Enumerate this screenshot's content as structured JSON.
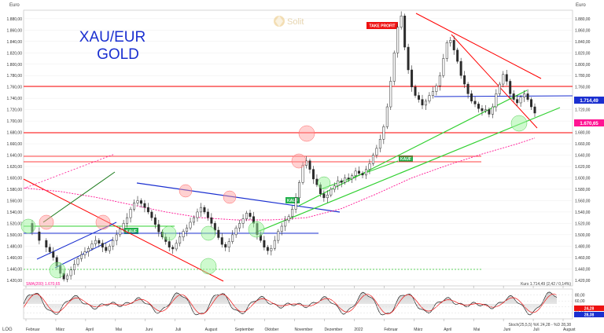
{
  "header": {
    "currency_left": "Euro",
    "currency_right": "Euro"
  },
  "brand": {
    "name": "Solit"
  },
  "chart_title": {
    "line1": "XAU/EUR",
    "line2": "GOLD"
  },
  "annotations": {
    "take_profit": "TAKE PROFIT",
    "kauf": "KAUF",
    "sma_label": "SMA(200) 1.670,65",
    "kurs_label": "Kurs 1.714,49 (2,42 / 0,14%)",
    "stoch_label": "Stoch(25,5,5) %K 24,28 - %D 28,38"
  },
  "badges": {
    "last_price": "1.714,49",
    "sma_value": "1.670,65",
    "stoch_k": "24,28",
    "stoch_d": "28,38"
  },
  "footer": {
    "log": "LOG"
  },
  "colors": {
    "price": "#2a2a2a",
    "resistance": "#ff0000",
    "support": "#30d030",
    "channel": "#1a2fd0",
    "sma": "#ff1493",
    "title": "#1a2fd0"
  },
  "chart_data": {
    "type": "candlestick",
    "title": "XAU/EUR GOLD",
    "ylabel": "Euro",
    "ylim": [
      1410,
      1895
    ],
    "y_ticks": [
      "1.420,00",
      "1.440,00",
      "1.460,00",
      "1.480,00",
      "1.500,00",
      "1.520,00",
      "1.540,00",
      "1.560,00",
      "1.580,00",
      "1.600,00",
      "1.620,00",
      "1.640,00",
      "1.660,00",
      "1.680,00",
      "1.700,00",
      "1.720,00",
      "1.740,00",
      "1.760,00",
      "1.780,00",
      "1.800,00",
      "1.820,00",
      "1.840,00",
      "1.860,00",
      "1.880,00"
    ],
    "x_labels": [
      "Februar",
      "März",
      "April",
      "Mai",
      "Juni",
      "Juli",
      "August",
      "September",
      "Oktober",
      "November",
      "Dezember",
      "2022",
      "Februar",
      "März",
      "April",
      "Mai",
      "Juni",
      "Juli",
      "August"
    ],
    "price_path": [
      [
        0,
        1520
      ],
      [
        2,
        1505
      ],
      [
        4,
        1490
      ],
      [
        6,
        1478
      ],
      [
        7,
        1470
      ],
      [
        8,
        1460
      ],
      [
        9,
        1445
      ],
      [
        10,
        1432
      ],
      [
        11,
        1422
      ],
      [
        12,
        1428
      ],
      [
        13,
        1438
      ],
      [
        14,
        1448
      ],
      [
        15,
        1458
      ],
      [
        16,
        1465
      ],
      [
        17,
        1470
      ],
      [
        18,
        1476
      ],
      [
        19,
        1484
      ],
      [
        20,
        1490
      ],
      [
        21,
        1485
      ],
      [
        22,
        1478
      ],
      [
        23,
        1472
      ],
      [
        24,
        1480
      ],
      [
        25,
        1490
      ],
      [
        26,
        1500
      ],
      [
        27,
        1510
      ],
      [
        28,
        1520
      ],
      [
        29,
        1530
      ],
      [
        30,
        1545
      ],
      [
        31,
        1556
      ],
      [
        32,
        1560
      ],
      [
        33,
        1555
      ],
      [
        34,
        1548
      ],
      [
        35,
        1540
      ],
      [
        36,
        1530
      ],
      [
        37,
        1518
      ],
      [
        38,
        1505
      ],
      [
        39,
        1496
      ],
      [
        40,
        1488
      ],
      [
        41,
        1478
      ],
      [
        42,
        1475
      ],
      [
        43,
        1485
      ],
      [
        44,
        1496
      ],
      [
        45,
        1506
      ],
      [
        46,
        1512
      ],
      [
        47,
        1522
      ],
      [
        48,
        1530
      ],
      [
        49,
        1540
      ],
      [
        50,
        1548
      ],
      [
        51,
        1540
      ],
      [
        52,
        1530
      ],
      [
        53,
        1520
      ],
      [
        54,
        1508
      ],
      [
        55,
        1495
      ],
      [
        56,
        1483
      ],
      [
        57,
        1478
      ],
      [
        58,
        1488
      ],
      [
        59,
        1500
      ],
      [
        60,
        1512
      ],
      [
        61,
        1520
      ],
      [
        62,
        1528
      ],
      [
        63,
        1538
      ],
      [
        64,
        1532
      ],
      [
        65,
        1520
      ],
      [
        66,
        1500
      ],
      [
        67,
        1490
      ],
      [
        68,
        1478
      ],
      [
        69,
        1472
      ],
      [
        70,
        1476
      ],
      [
        71,
        1490
      ],
      [
        72,
        1506
      ],
      [
        73,
        1515
      ],
      [
        74,
        1525
      ],
      [
        75,
        1532
      ],
      [
        76,
        1545
      ],
      [
        77,
        1565
      ],
      [
        78,
        1592
      ],
      [
        79,
        1622
      ],
      [
        80,
        1630
      ],
      [
        81,
        1615
      ],
      [
        82,
        1598
      ],
      [
        83,
        1588
      ],
      [
        84,
        1572
      ],
      [
        85,
        1565
      ],
      [
        86,
        1570
      ],
      [
        87,
        1580
      ],
      [
        88,
        1586
      ],
      [
        89,
        1595
      ],
      [
        90,
        1592
      ],
      [
        91,
        1600
      ],
      [
        92,
        1598
      ],
      [
        93,
        1604
      ],
      [
        94,
        1612
      ],
      [
        95,
        1608
      ],
      [
        96,
        1605
      ],
      [
        97,
        1615
      ],
      [
        98,
        1625
      ],
      [
        99,
        1640
      ],
      [
        100,
        1652
      ],
      [
        101,
        1668
      ],
      [
        102,
        1690
      ],
      [
        103,
        1725
      ],
      [
        104,
        1770
      ],
      [
        105,
        1820
      ],
      [
        106,
        1865
      ],
      [
        107,
        1885
      ],
      [
        108,
        1830
      ],
      [
        109,
        1790
      ],
      [
        110,
        1760
      ],
      [
        111,
        1745
      ],
      [
        112,
        1738
      ],
      [
        113,
        1728
      ],
      [
        114,
        1735
      ],
      [
        115,
        1745
      ],
      [
        116,
        1752
      ],
      [
        117,
        1762
      ],
      [
        118,
        1780
      ],
      [
        119,
        1810
      ],
      [
        120,
        1838
      ],
      [
        121,
        1842
      ],
      [
        122,
        1825
      ],
      [
        123,
        1805
      ],
      [
        124,
        1780
      ],
      [
        125,
        1765
      ],
      [
        126,
        1748
      ],
      [
        127,
        1735
      ],
      [
        128,
        1730
      ],
      [
        129,
        1722
      ],
      [
        130,
        1718
      ],
      [
        131,
        1720
      ],
      [
        132,
        1712
      ],
      [
        133,
        1725
      ],
      [
        134,
        1748
      ],
      [
        135,
        1765
      ],
      [
        136,
        1782
      ],
      [
        137,
        1770
      ],
      [
        138,
        1748
      ],
      [
        139,
        1738
      ],
      [
        140,
        1732
      ],
      [
        141,
        1742
      ],
      [
        142,
        1748
      ],
      [
        143,
        1738
      ],
      [
        144,
        1725
      ],
      [
        145,
        1714
      ]
    ],
    "sma200_path": [
      [
        0,
        1582
      ],
      [
        10,
        1576
      ],
      [
        20,
        1566
      ],
      [
        30,
        1553
      ],
      [
        40,
        1540
      ],
      [
        50,
        1530
      ],
      [
        60,
        1526
      ],
      [
        70,
        1526
      ],
      [
        80,
        1530
      ],
      [
        90,
        1546
      ],
      [
        100,
        1572
      ],
      [
        110,
        1600
      ],
      [
        120,
        1622
      ],
      [
        130,
        1642
      ],
      [
        140,
        1660
      ],
      [
        145,
        1670
      ]
    ],
    "stochastic": {
      "k": 24.28,
      "d": 28.38,
      "ticks": [
        "80,00",
        "60,00",
        "40,00",
        "20,00"
      ],
      "ylim": [
        0,
        100
      ]
    },
    "horizontal_levels": [
      {
        "name": "red-resistance",
        "value": 1741
      },
      {
        "name": "red-level",
        "value": 1658
      },
      {
        "name": "red-band-top",
        "value": 1612
      },
      {
        "name": "red-band-bottom",
        "value": 1603
      },
      {
        "name": "blue-level",
        "value": 1477
      },
      {
        "name": "green-level",
        "value": 1489
      },
      {
        "name": "green-dotted-level",
        "value": 1420
      },
      {
        "name": "blue-short-level",
        "value": 1722
      }
    ],
    "last_price": 1714.49,
    "sma200_value": 1670.65
  }
}
